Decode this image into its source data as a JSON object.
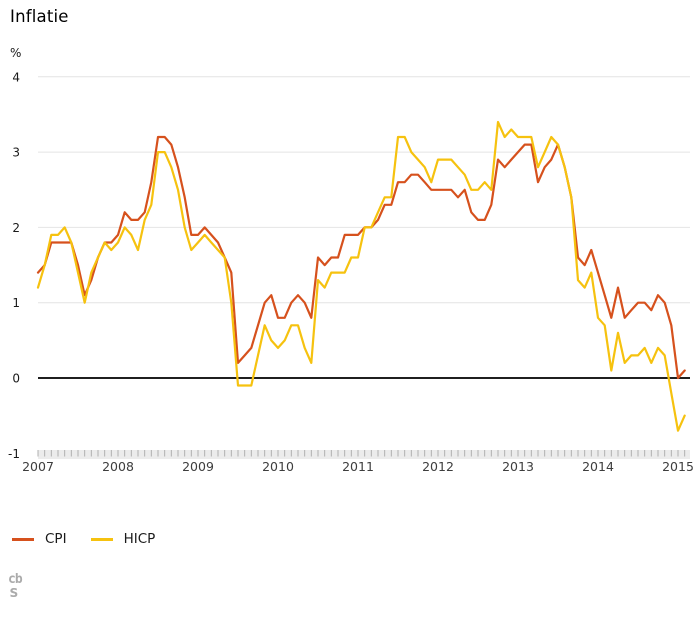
{
  "title": "Inflatie",
  "legend": {
    "items": [
      "CPI",
      "HICP"
    ]
  },
  "logo": {
    "letters_top": "cb",
    "letters_bottom": "s",
    "alt": "CBS"
  },
  "appearance": {
    "grid_color": "#e4e4e4",
    "zero_line_color": "#1f1f1f",
    "axis_band_color": "#ececec",
    "axis_tick_color": "#b0b0b0",
    "y_label_color": "#1a1a1a",
    "year_label_color": "#3d3d3d"
  },
  "chart_data": {
    "type": "line",
    "title": "Inflatie",
    "xlabel": "",
    "ylabel": "%",
    "ylim": [
      -1,
      4
    ],
    "yticks": [
      4,
      3,
      2,
      1,
      0,
      -1
    ],
    "grid": "horizontal",
    "zero_line": true,
    "legend_position": "bottom-left",
    "x_unit": "month",
    "x_start": "2007-01",
    "x_end": "2015-02",
    "year_ticks": [
      2007,
      2008,
      2009,
      2010,
      2011,
      2012,
      2013,
      2014,
      2015
    ],
    "series": [
      {
        "name": "CPI",
        "color": "#d6511d",
        "values": [
          1.4,
          1.5,
          1.8,
          1.8,
          1.8,
          1.8,
          1.5,
          1.1,
          1.3,
          1.6,
          1.8,
          1.8,
          1.9,
          2.2,
          2.1,
          2.1,
          2.2,
          2.6,
          3.2,
          3.2,
          3.1,
          2.8,
          2.4,
          1.9,
          1.9,
          2.0,
          1.9,
          1.8,
          1.6,
          1.4,
          0.2,
          0.3,
          0.4,
          0.7,
          1.0,
          1.1,
          0.8,
          0.8,
          1.0,
          1.1,
          1.0,
          0.8,
          1.6,
          1.5,
          1.6,
          1.6,
          1.9,
          1.9,
          1.9,
          2.0,
          2.0,
          2.1,
          2.3,
          2.3,
          2.6,
          2.6,
          2.7,
          2.7,
          2.6,
          2.5,
          2.5,
          2.5,
          2.5,
          2.4,
          2.5,
          2.2,
          2.1,
          2.1,
          2.3,
          2.9,
          2.8,
          2.9,
          3.0,
          3.1,
          3.1,
          2.6,
          2.8,
          2.9,
          3.1,
          2.8,
          2.4,
          1.6,
          1.5,
          1.7,
          1.4,
          1.1,
          0.8,
          1.2,
          0.8,
          0.9,
          1.0,
          1.0,
          0.9,
          1.1,
          1.0,
          0.7,
          0.0,
          0.1
        ]
      },
      {
        "name": "HICP",
        "color": "#f6c20f",
        "values": [
          1.2,
          1.5,
          1.9,
          1.9,
          2.0,
          1.8,
          1.4,
          1.0,
          1.4,
          1.6,
          1.8,
          1.7,
          1.8,
          2.0,
          1.9,
          1.7,
          2.1,
          2.3,
          3.0,
          3.0,
          2.8,
          2.5,
          2.0,
          1.7,
          1.8,
          1.9,
          1.8,
          1.7,
          1.6,
          1.0,
          -0.1,
          -0.1,
          -0.1,
          0.3,
          0.7,
          0.5,
          0.4,
          0.5,
          0.7,
          0.7,
          0.4,
          0.2,
          1.3,
          1.2,
          1.4,
          1.4,
          1.4,
          1.6,
          1.6,
          2.0,
          2.0,
          2.2,
          2.4,
          2.4,
          3.2,
          3.2,
          3.0,
          2.9,
          2.8,
          2.6,
          2.9,
          2.9,
          2.9,
          2.8,
          2.7,
          2.5,
          2.5,
          2.6,
          2.5,
          3.4,
          3.2,
          3.3,
          3.2,
          3.2,
          3.2,
          2.8,
          3.0,
          3.2,
          3.1,
          2.8,
          2.4,
          1.3,
          1.2,
          1.4,
          0.8,
          0.7,
          0.1,
          0.6,
          0.2,
          0.3,
          0.3,
          0.4,
          0.2,
          0.4,
          0.3,
          -0.2,
          -0.7,
          -0.5
        ]
      }
    ]
  }
}
